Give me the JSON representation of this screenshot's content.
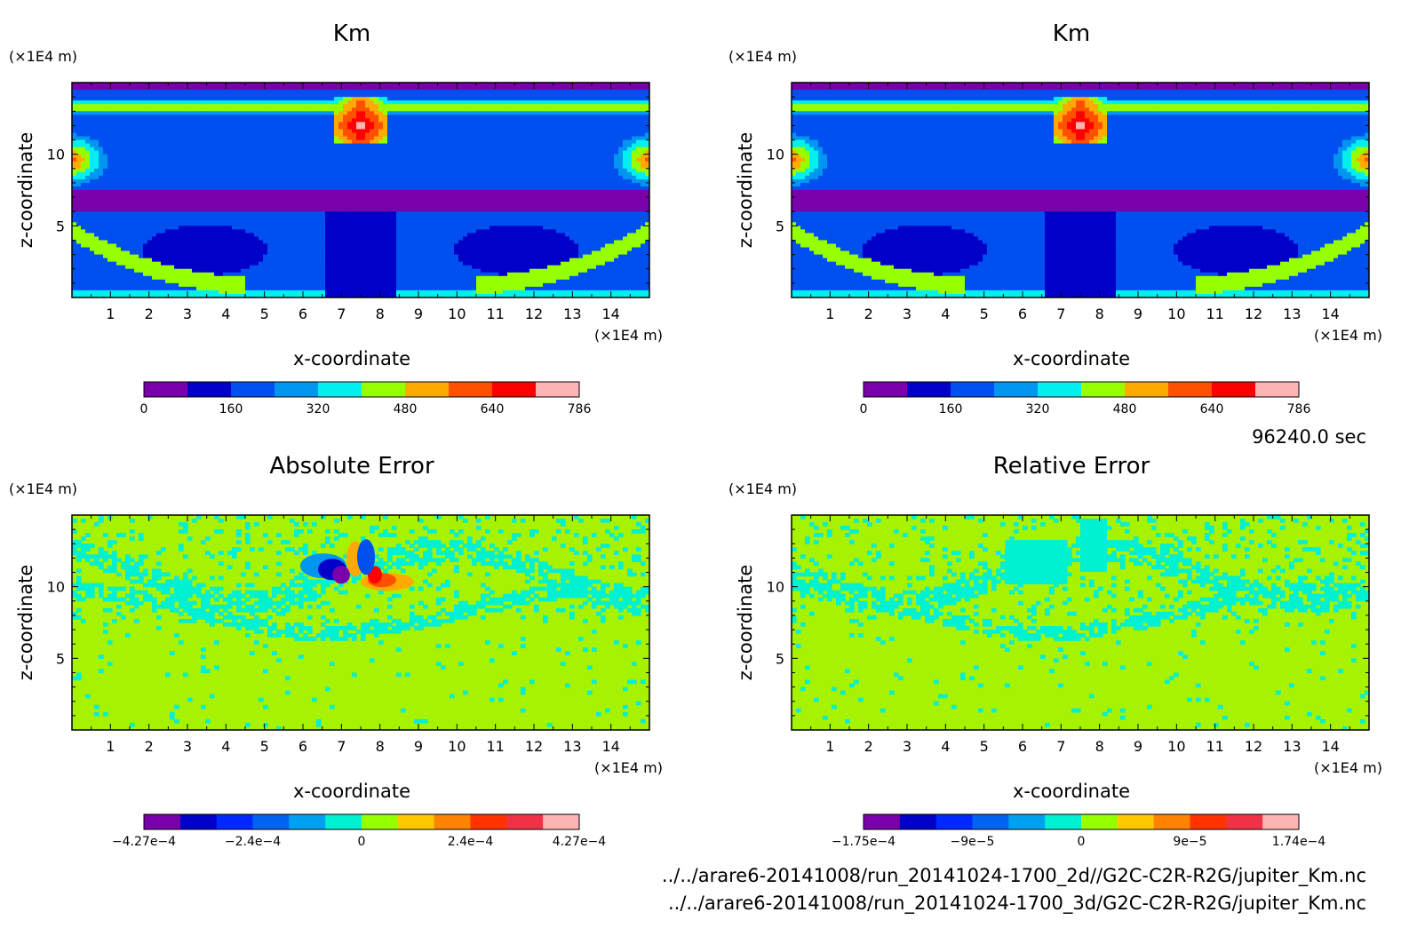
{
  "time_label": "96240.0 sec",
  "footer": {
    "line1": "../../arare6-20141008/run_20141024-1700_2d//G2C-C2R-R2G/jupiter_Km.nc",
    "line2": "../../arare6-20141008/run_20141024-1700_3d/G2C-C2R-R2G/jupiter_Km.nc"
  },
  "chart_data": [
    {
      "type": "heatmap",
      "title": "Km",
      "xlabel": "x-coordinate",
      "ylabel": "z-coordinate",
      "x_unit": "(×1E4 m)",
      "y_unit": "(×1E4 m)",
      "xlim": [
        0,
        15
      ],
      "ylim": [
        0,
        15
      ],
      "x_ticks": [
        "1",
        "2",
        "3",
        "4",
        "5",
        "6",
        "7",
        "8",
        "9",
        "10",
        "11",
        "12",
        "13",
        "14"
      ],
      "y_ticks": [
        "5",
        "10"
      ],
      "colorbar": {
        "range": [
          0,
          786
        ],
        "tick_labels": [
          "0",
          "160",
          "320",
          "480",
          "640",
          "786"
        ],
        "colors": [
          "#7a00aa",
          "#0000c8",
          "#0050f0",
          "#0096f0",
          "#00f0f0",
          "#96ff00",
          "#ffaa00",
          "#ff5000",
          "#ff0000",
          "#ffb4b4"
        ]
      },
      "fields": "Km"
    },
    {
      "type": "heatmap",
      "title": "Km",
      "xlabel": "x-coordinate",
      "ylabel": "z-coordinate",
      "x_unit": "(×1E4 m)",
      "y_unit": "(×1E4 m)",
      "xlim": [
        0,
        15
      ],
      "ylim": [
        0,
        15
      ],
      "x_ticks": [
        "1",
        "2",
        "3",
        "4",
        "5",
        "6",
        "7",
        "8",
        "9",
        "10",
        "11",
        "12",
        "13",
        "14"
      ],
      "y_ticks": [
        "5",
        "10"
      ],
      "colorbar": {
        "range": [
          0,
          786
        ],
        "tick_labels": [
          "0",
          "160",
          "320",
          "480",
          "640",
          "786"
        ],
        "colors": [
          "#7a00aa",
          "#0000c8",
          "#0050f0",
          "#0096f0",
          "#00f0f0",
          "#96ff00",
          "#ffaa00",
          "#ff5000",
          "#ff0000",
          "#ffb4b4"
        ]
      },
      "fields": "Km"
    },
    {
      "type": "heatmap",
      "title": "Absolute Error",
      "xlabel": "x-coordinate",
      "ylabel": "z-coordinate",
      "x_unit": "(×1E4 m)",
      "y_unit": "(×1E4 m)",
      "xlim": [
        0,
        15
      ],
      "ylim": [
        0,
        15
      ],
      "x_ticks": [
        "1",
        "2",
        "3",
        "4",
        "5",
        "6",
        "7",
        "8",
        "9",
        "10",
        "11",
        "12",
        "13",
        "14"
      ],
      "y_ticks": [
        "5",
        "10"
      ],
      "colorbar": {
        "range": [
          -0.000427,
          0.000427
        ],
        "tick_labels": [
          "−4.27e−4",
          "−2.4e−4",
          "0",
          "2.4e−4",
          "4.27e−4"
        ],
        "colors": [
          "#7a00aa",
          "#0000c8",
          "#0028ff",
          "#0064f0",
          "#00a0f0",
          "#00f0d2",
          "#96ff00",
          "#ffc800",
          "#ff8200",
          "#ff3200",
          "#f03246",
          "#ffb4b4"
        ]
      },
      "fields": "abs_error"
    },
    {
      "type": "heatmap",
      "title": "Relative Error",
      "xlabel": "x-coordinate",
      "ylabel": "z-coordinate",
      "x_unit": "(×1E4 m)",
      "y_unit": "(×1E4 m)",
      "xlim": [
        0,
        15
      ],
      "ylim": [
        0,
        15
      ],
      "x_ticks": [
        "1",
        "2",
        "3",
        "4",
        "5",
        "6",
        "7",
        "8",
        "9",
        "10",
        "11",
        "12",
        "13",
        "14"
      ],
      "y_ticks": [
        "5",
        "10"
      ],
      "colorbar": {
        "range": [
          -0.000175,
          0.000174
        ],
        "tick_labels": [
          "−1.75e−4",
          "−9e−5",
          "0",
          "9e−5",
          "1.74e−4"
        ],
        "colors": [
          "#7a00aa",
          "#0000c8",
          "#0028ff",
          "#0064f0",
          "#00a0f0",
          "#00f0d2",
          "#96ff00",
          "#ffc800",
          "#ff8200",
          "#ff3200",
          "#f03246",
          "#ffb4b4"
        ]
      },
      "fields": "rel_error"
    }
  ]
}
